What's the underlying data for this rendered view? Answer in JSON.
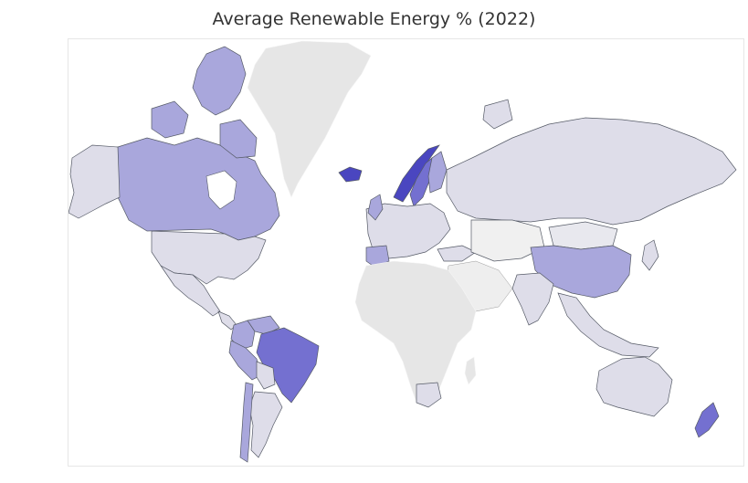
{
  "title": "Average Renewable Energy % (2022)",
  "colors": {
    "no_data": "#e6e6e6",
    "low": "#dedde9",
    "mid": "#a9a7dc",
    "high": "#7470d0",
    "very_high": "#4a46c0",
    "border": "#555a66"
  },
  "regions": [
    {
      "name": "Canada",
      "color_level": "mid"
    },
    {
      "name": "United States",
      "color_level": "low"
    },
    {
      "name": "Mexico",
      "color_level": "low"
    },
    {
      "name": "Greenland",
      "color_level": "no_data"
    },
    {
      "name": "Iceland",
      "color_level": "very_high"
    },
    {
      "name": "Norway",
      "color_level": "very_high"
    },
    {
      "name": "Sweden",
      "color_level": "high"
    },
    {
      "name": "Finland",
      "color_level": "mid"
    },
    {
      "name": "Russia",
      "color_level": "low"
    },
    {
      "name": "China",
      "color_level": "mid"
    },
    {
      "name": "India",
      "color_level": "low"
    },
    {
      "name": "Brazil",
      "color_level": "high"
    },
    {
      "name": "Peru",
      "color_level": "mid"
    },
    {
      "name": "Colombia",
      "color_level": "mid"
    },
    {
      "name": "Venezuela",
      "color_level": "mid"
    },
    {
      "name": "Argentina",
      "color_level": "low"
    },
    {
      "name": "Chile",
      "color_level": "mid"
    },
    {
      "name": "Australia",
      "color_level": "low"
    },
    {
      "name": "New Zealand",
      "color_level": "high"
    },
    {
      "name": "Africa",
      "color_level": "no_data"
    },
    {
      "name": "Middle East",
      "color_level": "no_data"
    }
  ]
}
